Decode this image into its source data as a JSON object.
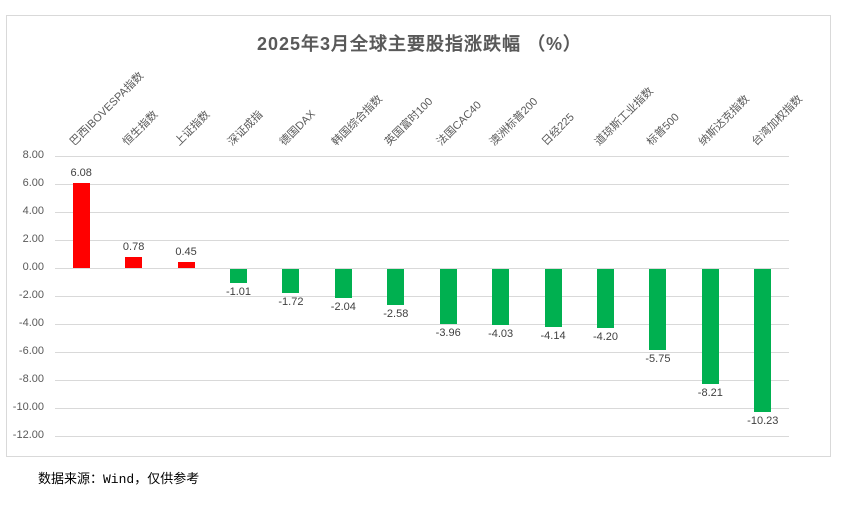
{
  "title": "2025年3月全球主要股指涨跌幅 （%）",
  "footer": "数据来源：Wind，仅供参考",
  "colors": {
    "positive_bar": "#FF0000",
    "negative_bar": "#00B050",
    "gridline": "#D9D9D9",
    "axis_text": "#595959",
    "value_text": "#404040",
    "title_text": "#595959",
    "frame_border": "#D9D9D9"
  },
  "chart_data": {
    "type": "bar",
    "title": "2025年3月全球主要股指涨跌幅 （%）",
    "xlabel": "",
    "ylabel": "",
    "categories": [
      "巴西IBOVESPA指数",
      "恒生指数",
      "上证指数",
      "深证成指",
      "德国DAX",
      "韩国综合指数",
      "英国富时100",
      "法国CAC40",
      "澳洲标普200",
      "日经225",
      "道琼斯工业指数",
      "标普500",
      "纳斯达克指数",
      "台湾加权指数"
    ],
    "values": [
      6.08,
      0.78,
      0.45,
      -1.01,
      -1.72,
      -2.04,
      -2.58,
      -3.96,
      -4.03,
      -4.14,
      -4.2,
      -5.75,
      -8.21,
      -10.23
    ],
    "value_labels": [
      "6.08",
      "0.78",
      "0.45",
      "-1.01",
      "-1.72",
      "-2.04",
      "-2.58",
      "-3.96",
      "-4.03",
      "-4.14",
      "-4.20",
      "-5.75",
      "-8.21",
      "-10.23"
    ],
    "ylim": [
      -12,
      8
    ],
    "ytick_step": 2,
    "ytick_labels": [
      "8.00",
      "6.00",
      "4.00",
      "2.00",
      "0.00",
      "-2.00",
      "-4.00",
      "-6.00",
      "-8.00",
      "-10.00",
      "-12.00"
    ],
    "grid": true,
    "legend": "none",
    "category_label_position": "top-rotated-45",
    "positive_color": "#FF0000",
    "negative_color": "#00B050"
  }
}
